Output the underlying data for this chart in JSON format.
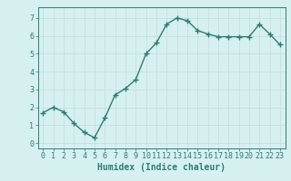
{
  "x": [
    0,
    1,
    2,
    3,
    4,
    5,
    6,
    7,
    8,
    9,
    10,
    11,
    12,
    13,
    14,
    15,
    16,
    17,
    18,
    19,
    20,
    21,
    22,
    23
  ],
  "y": [
    1.7,
    2.0,
    1.75,
    1.1,
    0.6,
    0.3,
    1.4,
    2.7,
    3.05,
    3.55,
    5.0,
    5.6,
    6.65,
    7.0,
    6.85,
    6.3,
    6.1,
    5.95,
    5.95,
    5.95,
    5.95,
    6.65,
    6.1,
    5.5
  ],
  "line_color": "#2e7d6e",
  "marker": "+",
  "marker_size": 4,
  "linewidth": 1.0,
  "bg_color": "#d6f0ef",
  "grid_color": "#c0deda",
  "xlabel": "Humidex (Indice chaleur)",
  "xlabel_fontsize": 7,
  "tick_fontsize": 6,
  "xlim": [
    -0.5,
    23.5
  ],
  "ylim": [
    -0.3,
    7.6
  ],
  "yticks": [
    0,
    1,
    2,
    3,
    4,
    5,
    6,
    7
  ],
  "xticks": [
    0,
    1,
    2,
    3,
    4,
    5,
    6,
    7,
    8,
    9,
    10,
    11,
    12,
    13,
    14,
    15,
    16,
    17,
    18,
    19,
    20,
    21,
    22,
    23
  ]
}
